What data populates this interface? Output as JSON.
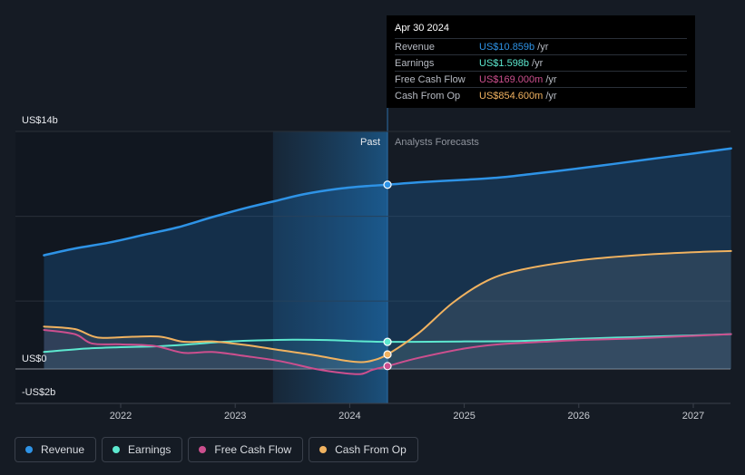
{
  "chart_data": {
    "type": "line",
    "unit": "US$ billions",
    "x_ticks": [
      "2022",
      "2023",
      "2024",
      "2025",
      "2026",
      "2027"
    ],
    "y_axis_labels": {
      "top": "US$14b",
      "zero": "US$0",
      "bottom": "-US$2b"
    },
    "ylim": [
      -2,
      14
    ],
    "x_range": [
      2021.3,
      2027.33
    ],
    "divider_x": 2024.33,
    "past_band_start": 2023.33,
    "past_label": "Past",
    "forecast_label": "Analysts Forecasts",
    "series": [
      {
        "name": "Revenue",
        "color": "#2e93e6",
        "x": [
          2021.33,
          2021.6,
          2021.9,
          2022.2,
          2022.5,
          2022.8,
          2023.1,
          2023.35,
          2023.6,
          2023.9,
          2024.15,
          2024.33,
          2024.6,
          2025.0,
          2025.3,
          2025.6,
          2026.0,
          2026.3,
          2026.6,
          2027.0,
          2027.33
        ],
        "values": [
          6.7,
          7.1,
          7.45,
          7.9,
          8.35,
          8.95,
          9.5,
          9.9,
          10.3,
          10.62,
          10.78,
          10.859,
          11.0,
          11.15,
          11.28,
          11.5,
          11.82,
          12.08,
          12.35,
          12.7,
          13.0
        ]
      },
      {
        "name": "Earnings",
        "color": "#5de8cf",
        "x": [
          2021.33,
          2021.7,
          2022.0,
          2022.3,
          2022.6,
          2022.9,
          2023.2,
          2023.5,
          2023.8,
          2024.1,
          2024.33,
          2024.7,
          2025.0,
          2025.5,
          2026.0,
          2026.5,
          2027.0,
          2027.33
        ],
        "values": [
          1.0,
          1.2,
          1.28,
          1.33,
          1.45,
          1.6,
          1.68,
          1.72,
          1.7,
          1.63,
          1.598,
          1.6,
          1.62,
          1.65,
          1.78,
          1.88,
          1.98,
          2.05
        ]
      },
      {
        "name": "Free Cash Flow",
        "color": "#cc4f8e",
        "x": [
          2021.33,
          2021.6,
          2021.75,
          2022.0,
          2022.3,
          2022.55,
          2022.8,
          2023.1,
          2023.4,
          2023.7,
          2023.95,
          2024.1,
          2024.2,
          2024.33,
          2024.6,
          2025.0,
          2025.3,
          2025.7,
          2026.0,
          2026.5,
          2027.0,
          2027.33
        ],
        "values": [
          2.3,
          2.05,
          1.5,
          1.45,
          1.35,
          0.95,
          1.0,
          0.75,
          0.45,
          0.0,
          -0.25,
          -0.3,
          -0.05,
          0.169,
          0.65,
          1.2,
          1.45,
          1.6,
          1.7,
          1.8,
          1.95,
          2.05
        ]
      },
      {
        "name": "Cash From Op",
        "color": "#f0b260",
        "x": [
          2021.33,
          2021.6,
          2021.8,
          2022.1,
          2022.35,
          2022.55,
          2022.8,
          2023.1,
          2023.4,
          2023.7,
          2023.95,
          2024.1,
          2024.2,
          2024.33,
          2024.6,
          2024.9,
          2025.2,
          2025.5,
          2026.0,
          2026.5,
          2027.0,
          2027.33
        ],
        "values": [
          2.5,
          2.35,
          1.85,
          1.9,
          1.9,
          1.6,
          1.62,
          1.4,
          1.1,
          0.8,
          0.5,
          0.4,
          0.5,
          0.8546,
          2.1,
          3.9,
          5.2,
          5.85,
          6.4,
          6.7,
          6.88,
          6.95
        ]
      }
    ]
  },
  "tooltip": {
    "date": "Apr 30 2024",
    "rows": [
      {
        "name": "Revenue",
        "value": "US$10.859b",
        "unit": "/yr",
        "color": "#2e93e6"
      },
      {
        "name": "Earnings",
        "value": "US$1.598b",
        "unit": "/yr",
        "color": "#5de8cf"
      },
      {
        "name": "Free Cash Flow",
        "value": "US$169.000m",
        "unit": "/yr",
        "color": "#cc4f8e"
      },
      {
        "name": "Cash From Op",
        "value": "US$854.600m",
        "unit": "/yr",
        "color": "#f0b260"
      }
    ]
  },
  "legend": [
    {
      "name": "Revenue",
      "color": "#2e93e6"
    },
    {
      "name": "Earnings",
      "color": "#5de8cf"
    },
    {
      "name": "Free Cash Flow",
      "color": "#cc4f8e"
    },
    {
      "name": "Cash From Op",
      "color": "#f0b260"
    }
  ]
}
